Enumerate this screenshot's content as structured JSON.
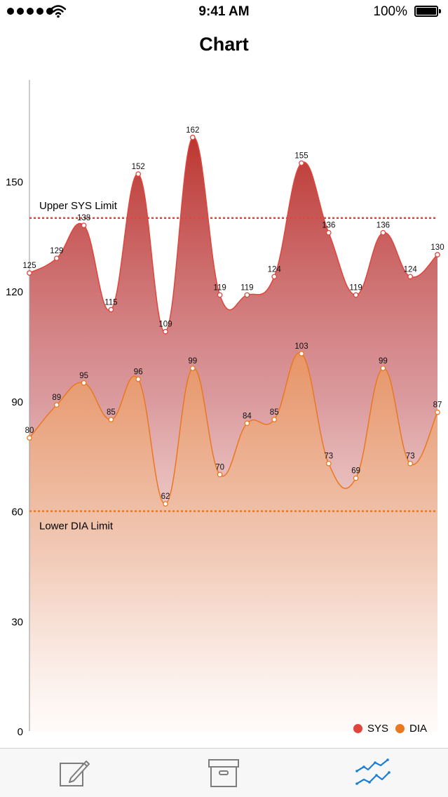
{
  "status_bar": {
    "time": "9:41 AM",
    "battery": "100%"
  },
  "nav": {
    "title": "Chart"
  },
  "tabs": [
    {
      "icon": "compose-icon",
      "active": false
    },
    {
      "icon": "archive-icon",
      "active": false
    },
    {
      "icon": "chart-icon",
      "active": true
    }
  ],
  "colors": {
    "sys": "#e0443c",
    "dia": "#e9781f",
    "active_tab": "#1a7fd4",
    "inactive_tab": "#7d7d7d"
  },
  "chart_data": {
    "type": "area",
    "x": [
      1,
      2,
      3,
      4,
      5,
      6,
      7,
      8,
      9,
      10,
      11,
      12,
      13,
      14,
      15,
      16
    ],
    "series": [
      {
        "name": "SYS",
        "values": [
          125,
          129,
          138,
          115,
          152,
          109,
          162,
          119,
          119,
          124,
          155,
          136,
          119,
          136,
          124,
          130
        ]
      },
      {
        "name": "DIA",
        "values": [
          80,
          89,
          95,
          85,
          96,
          62,
          99,
          70,
          84,
          85,
          103,
          73,
          69,
          99,
          73,
          87
        ]
      }
    ],
    "y_ticks": [
      0,
      30,
      60,
      90,
      120,
      150
    ],
    "ylim": [
      0,
      150
    ],
    "limit_lines": [
      {
        "label": "Upper SYS Limit",
        "value": 140
      },
      {
        "label": "Lower DIA Limit",
        "value": 60
      }
    ],
    "legend": [
      "SYS",
      "DIA"
    ],
    "legend_position": "bottom-right",
    "grid": false
  }
}
